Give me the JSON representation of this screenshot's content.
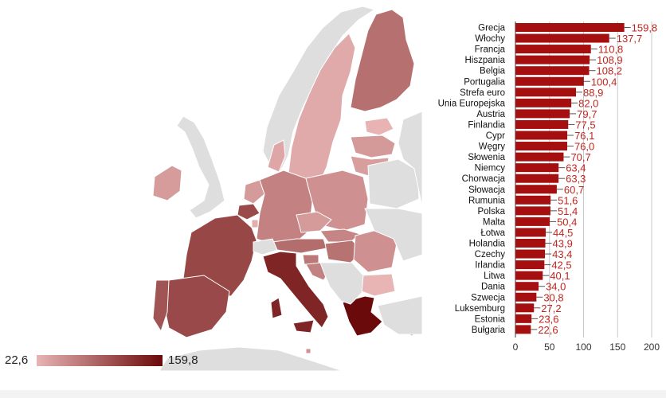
{
  "legend": {
    "min_label": "22,6",
    "max_label": "159,8",
    "color_min": "#e8b4b4",
    "color_max": "#6b0a0a"
  },
  "colors": {
    "bar": "#a50f0f",
    "label": "#c0261f",
    "land_nodata": "#dedede",
    "sea": "#ffffff",
    "grid": "#c8c8c8"
  },
  "chart_data": {
    "type": "bar",
    "orientation": "horizontal",
    "title": "",
    "xlabel": "",
    "ylabel": "",
    "xlim": [
      0,
      200
    ],
    "xticks": [
      "0",
      "50",
      "100",
      "150",
      "200"
    ],
    "grid": true,
    "categories": [
      "Grecja",
      "Włochy",
      "Francja",
      "Hiszpania",
      "Belgia",
      "Portugalia",
      "Strefa euro",
      "Unia Europejska",
      "Austria",
      "Finlandia",
      "Cypr",
      "Węgry",
      "Słowenia",
      "Niemcy",
      "Chorwacja",
      "Słowacja",
      "Rumunia",
      "Polska",
      "Malta",
      "Łotwa",
      "Holandia",
      "Czechy",
      "Irlandia",
      "Litwa",
      "Dania",
      "Szwecja",
      "Luksemburg",
      "Estonia",
      "Bułgaria"
    ],
    "values": [
      159.8,
      137.7,
      110.8,
      108.9,
      108.2,
      100.4,
      88.9,
      82.0,
      79.7,
      77.5,
      76.1,
      76.0,
      70.7,
      63.4,
      63.3,
      60.7,
      51.6,
      51.4,
      50.4,
      44.5,
      43.9,
      43.4,
      42.5,
      40.1,
      34.0,
      30.8,
      27.2,
      23.6,
      22.6
    ],
    "value_labels": [
      "159,8",
      "137,7",
      "110,8",
      "108,9",
      "108,2",
      "100,4",
      "88,9",
      "82,0",
      "79,7",
      "77,5",
      "76,1",
      "76,0",
      "70,7",
      "63,4",
      "63,3",
      "60,7",
      "51,6",
      "51,4",
      "50,4",
      "44,5",
      "43,9",
      "43,4",
      "42,5",
      "40,1",
      "34,0",
      "30,8",
      "27,2",
      "23,6",
      "22,6"
    ]
  },
  "map_data": {
    "scale_min": 22.6,
    "scale_max": 159.8,
    "regions": [
      {
        "name": "Norwegia",
        "value": null
      },
      {
        "name": "Szwecja",
        "value": 30.8
      },
      {
        "name": "Finlandia",
        "value": 77.5
      },
      {
        "name": "Estonia",
        "value": 23.6
      },
      {
        "name": "Łotwa",
        "value": 44.5
      },
      {
        "name": "Litwa",
        "value": 40.1
      },
      {
        "name": "Dania",
        "value": 34.0
      },
      {
        "name": "Irlandia",
        "value": 42.5
      },
      {
        "name": "Wielka Brytania",
        "value": null
      },
      {
        "name": "Holandia",
        "value": 43.9
      },
      {
        "name": "Belgia",
        "value": 108.2
      },
      {
        "name": "Luksemburg",
        "value": 27.2
      },
      {
        "name": "Niemcy",
        "value": 63.4
      },
      {
        "name": "Polska",
        "value": 51.4
      },
      {
        "name": "Czechy",
        "value": 43.4
      },
      {
        "name": "Słowacja",
        "value": 60.7
      },
      {
        "name": "Austria",
        "value": 79.7
      },
      {
        "name": "Węgry",
        "value": 76.0
      },
      {
        "name": "Słowenia",
        "value": 70.7
      },
      {
        "name": "Chorwacja",
        "value": 63.3
      },
      {
        "name": "Rumunia",
        "value": 51.6
      },
      {
        "name": "Bułgaria",
        "value": 22.6
      },
      {
        "name": "Francja",
        "value": 110.8
      },
      {
        "name": "Hiszpania",
        "value": 108.9
      },
      {
        "name": "Portugalia",
        "value": 100.4
      },
      {
        "name": "Włochy",
        "value": 137.7
      },
      {
        "name": "Grecja",
        "value": 159.8
      },
      {
        "name": "Cypr",
        "value": 76.1
      },
      {
        "name": "Malta",
        "value": 50.4
      },
      {
        "name": "Szwajcaria",
        "value": null
      },
      {
        "name": "Bałkany",
        "value": null
      },
      {
        "name": "Białoruś",
        "value": null
      },
      {
        "name": "Ukraina",
        "value": null
      },
      {
        "name": "Rosja",
        "value": null
      },
      {
        "name": "Turcja",
        "value": null
      },
      {
        "name": "Afryka Północna",
        "value": null
      }
    ]
  }
}
